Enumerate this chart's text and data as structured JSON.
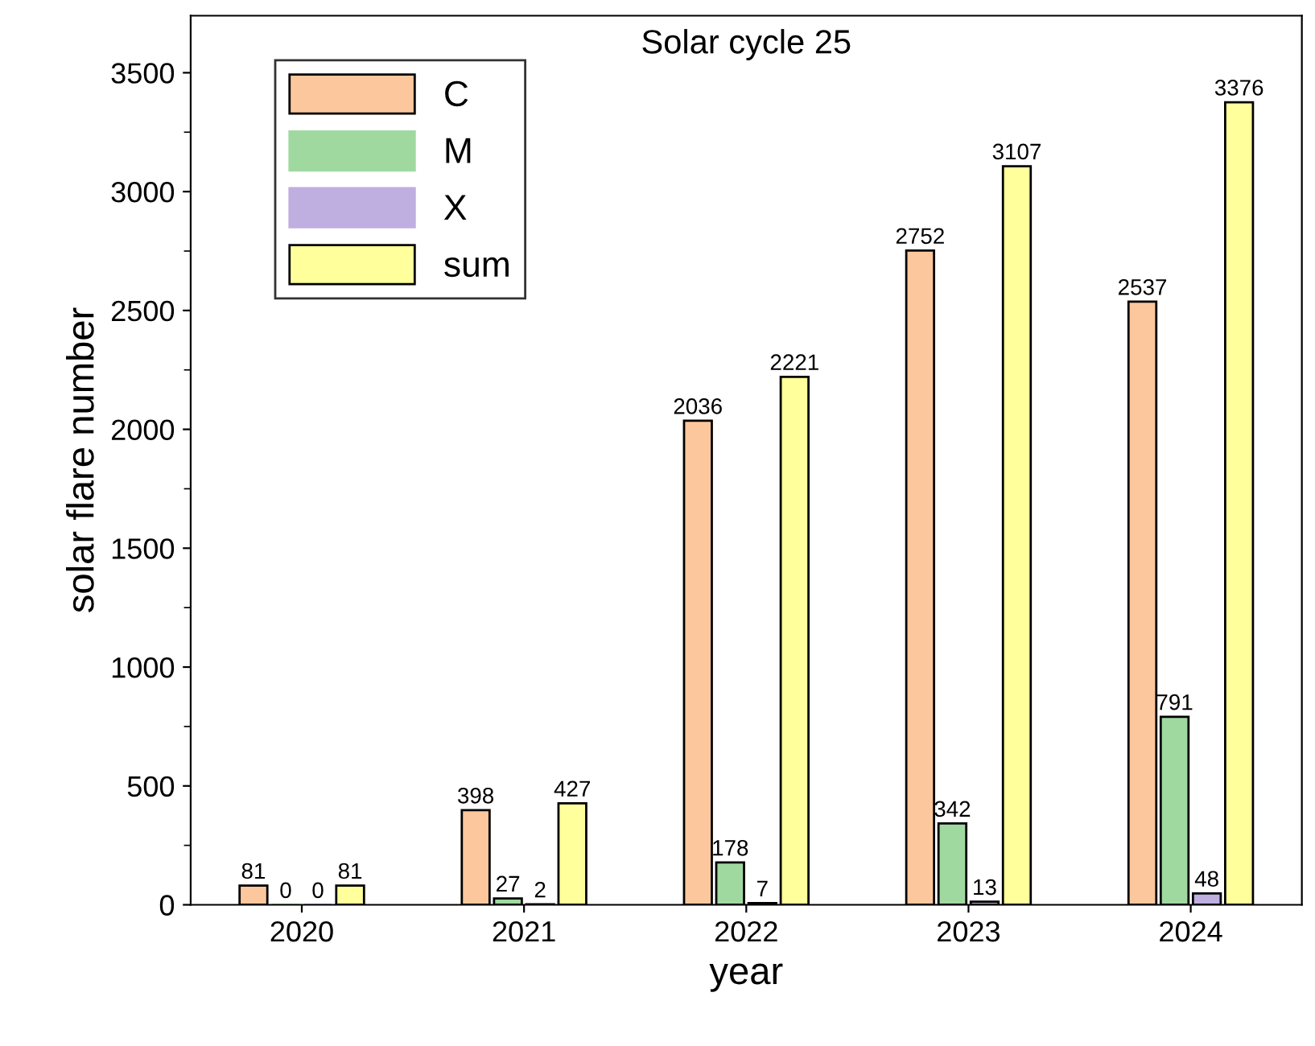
{
  "chart_data": {
    "type": "bar",
    "title": "Solar cycle 25",
    "xlabel": "year",
    "ylabel": "solar flare number",
    "categories": [
      "2020",
      "2021",
      "2022",
      "2023",
      "2024"
    ],
    "series": [
      {
        "name": "C",
        "color": "#fcc79c",
        "values": [
          81,
          398,
          2036,
          2752,
          2537
        ]
      },
      {
        "name": "M",
        "color": "#a0d9a0",
        "values": [
          0,
          27,
          178,
          342,
          791
        ]
      },
      {
        "name": "X",
        "color": "#bfaee0",
        "values": [
          0,
          2,
          7,
          13,
          48
        ]
      },
      {
        "name": "sum",
        "color": "#ffff9c",
        "values": [
          81,
          427,
          2221,
          3107,
          3376
        ]
      }
    ],
    "ylim": [
      0,
      3740
    ],
    "yticks": [
      0,
      500,
      1000,
      1500,
      2000,
      2500,
      3000,
      3500
    ],
    "data_labels": true,
    "legend": "top left",
    "grid": false
  }
}
